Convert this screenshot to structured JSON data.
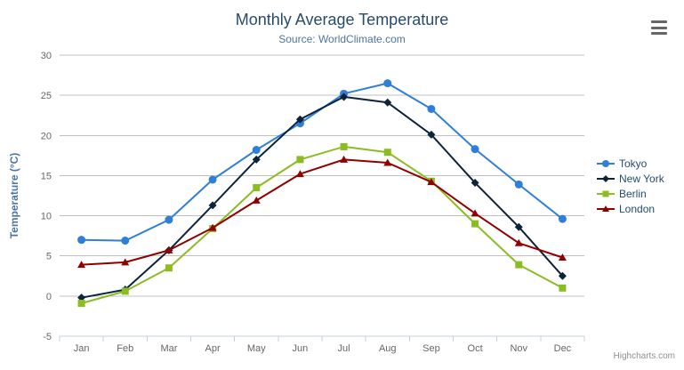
{
  "chart_data": {
    "type": "line",
    "title": "Monthly Average Temperature",
    "subtitle": "Source: WorldClimate.com",
    "categories": [
      "Jan",
      "Feb",
      "Mar",
      "Apr",
      "May",
      "Jun",
      "Jul",
      "Aug",
      "Sep",
      "Oct",
      "Nov",
      "Dec"
    ],
    "xlabel": "",
    "ylabel": "Temperature (°C)",
    "ylim": [
      -5,
      30
    ],
    "ytick_interval": 5,
    "grid": true,
    "legend_position": "right",
    "series": [
      {
        "name": "Tokyo",
        "color": "#2f7ed8",
        "marker": "circle",
        "values": [
          7.0,
          6.9,
          9.5,
          14.5,
          18.2,
          21.5,
          25.2,
          26.5,
          23.3,
          18.3,
          13.9,
          9.6
        ]
      },
      {
        "name": "New York",
        "color": "#0d233a",
        "marker": "diamond",
        "values": [
          -0.2,
          0.8,
          5.7,
          11.3,
          17.0,
          22.0,
          24.8,
          24.1,
          20.1,
          14.1,
          8.6,
          2.5
        ]
      },
      {
        "name": "Berlin",
        "color": "#8bbc21",
        "marker": "square",
        "values": [
          -0.9,
          0.6,
          3.5,
          8.4,
          13.5,
          17.0,
          18.6,
          17.9,
          14.3,
          9.0,
          3.9,
          1.0
        ]
      },
      {
        "name": "London",
        "color": "#910000",
        "marker": "triangle",
        "values": [
          3.9,
          4.2,
          5.7,
          8.5,
          11.9,
          15.2,
          17.0,
          16.6,
          14.2,
          10.3,
          6.6,
          4.8
        ]
      }
    ],
    "colors": {
      "title": "#274b6d",
      "subtitle": "#4d759e",
      "axis_title": "#4d759e",
      "tick_label": "#666666",
      "gridline": "#c0c0c0",
      "axis_line": "#c0d0e0",
      "legend_text": "#274b6d",
      "credits_text": "#909090",
      "menu_icon": "#666666"
    },
    "credits": "Highcharts.com"
  }
}
